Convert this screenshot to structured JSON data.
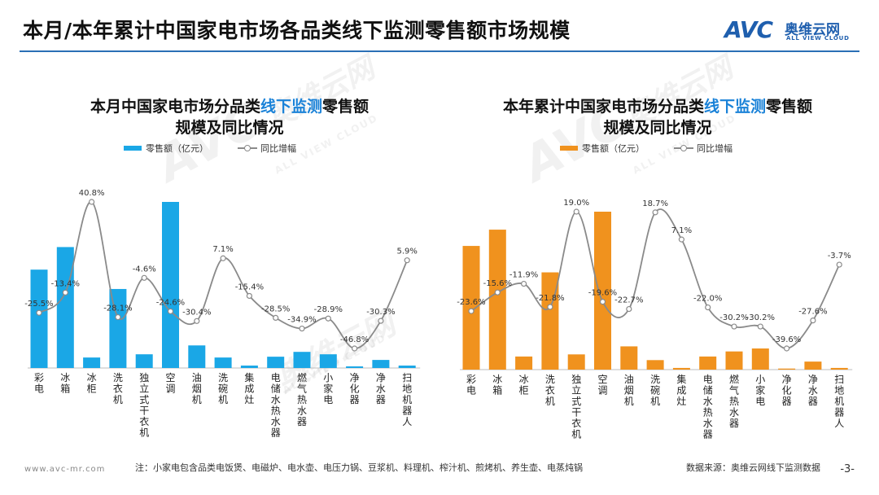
{
  "header": {
    "title": "本月/本年累计中国家电市场各品类线下监测零售额市场规模"
  },
  "logo": {
    "mark": "AVC",
    "cn": "奥维云网",
    "en": "ALL VIEW CLOUD"
  },
  "watermark": {
    "mark": "AVC",
    "cn": "奥维云网",
    "en": "ALL VIEW CLOUD"
  },
  "colors": {
    "monthly_bar": "#1aa7e6",
    "ytd_bar": "#f0921e",
    "line": "#8a8a8a",
    "accent": "#1a82d8",
    "rule": "#2a6fb5"
  },
  "footer": {
    "site": "www.avc-mr.com",
    "note": "注：小家电包含品类电饭煲、电磁炉、电水壶、电压力锅、豆浆机、料理机、榨汁机、煎烤机、养生壶、电蒸炖锅",
    "source": "数据来源：奥维云网线下监测数据",
    "page": "-3-"
  },
  "chart_data": [
    {
      "type": "bar",
      "title_pre": "本月中国家电市场分品类",
      "title_hl": "线下监测",
      "title_post": "零售额",
      "title_line2": "规模及同比情况",
      "legend_bar": "零售额（亿元）",
      "legend_line": "同比增幅",
      "categories": [
        "彩电",
        "冰箱",
        "冰柜",
        "洗衣机",
        "独立式干衣机",
        "空调",
        "油烟机",
        "洗碗机",
        "集成灶",
        "电储水热水器",
        "燃气热水器",
        "小家电",
        "净化器",
        "净水器",
        "扫地机器人"
      ],
      "series": [
        {
          "name": "零售额（亿元）",
          "kind": "bar",
          "values": [
            61,
            75,
            6.5,
            49,
            8.5,
            103,
            14,
            6.5,
            1.5,
            7,
            10,
            8.5,
            1,
            5,
            1.5
          ]
        },
        {
          "name": "同比增幅",
          "kind": "line",
          "values": [
            -25.5,
            -13.4,
            40.8,
            -28.1,
            -4.6,
            -24.6,
            -30.4,
            7.1,
            -15.4,
            -28.5,
            -34.9,
            -28.9,
            -46.8,
            -30.3,
            5.9
          ],
          "labels": [
            "-25.5%",
            "-13.4%",
            "40.8%",
            "-28.1%",
            "-4.6%",
            "-24.6%",
            "-30.4%",
            "7.1%",
            "-15.4%",
            "-28.5%",
            "-34.9%",
            "-28.9%",
            "-46.8%",
            "-30.3%",
            "5.9%"
          ]
        }
      ]
    },
    {
      "type": "bar",
      "title_pre": "本年累计中国家电市场分品类",
      "title_hl": "线下监测",
      "title_post": "零售额",
      "title_line2": "规模及同比情况",
      "legend_bar": "零售额（亿元）",
      "legend_line": "同比增幅",
      "categories": [
        "彩电",
        "冰箱",
        "冰柜",
        "洗衣机",
        "独立式干衣机",
        "空调",
        "油烟机",
        "洗碗机",
        "集成灶",
        "电储水热水器",
        "燃气热水器",
        "小家电",
        "净化器",
        "净水器",
        "扫地机器人"
      ],
      "series": [
        {
          "name": "零售额（亿元）",
          "kind": "bar",
          "values": [
            585,
            662,
            62,
            460,
            72,
            747,
            110,
            45,
            8,
            62,
            86,
            100,
            5,
            38,
            8
          ]
        },
        {
          "name": "同比增幅",
          "kind": "line",
          "values": [
            -23.6,
            -15.6,
            -11.9,
            -21.8,
            19.0,
            -19.6,
            -22.7,
            18.7,
            7.1,
            -22.0,
            -30.2,
            -30.2,
            -39.6,
            -27.6,
            -3.7
          ],
          "labels": [
            "-23.6%",
            "-15.6%",
            "-11.9%",
            "-21.8%",
            "19.0%",
            "-19.6%",
            "-22.7%",
            "18.7%",
            "7.1%",
            "-22.0%",
            "-30.2%",
            "-30.2%",
            "-39.6%",
            "-27.6%",
            "-3.7%"
          ]
        }
      ]
    }
  ]
}
